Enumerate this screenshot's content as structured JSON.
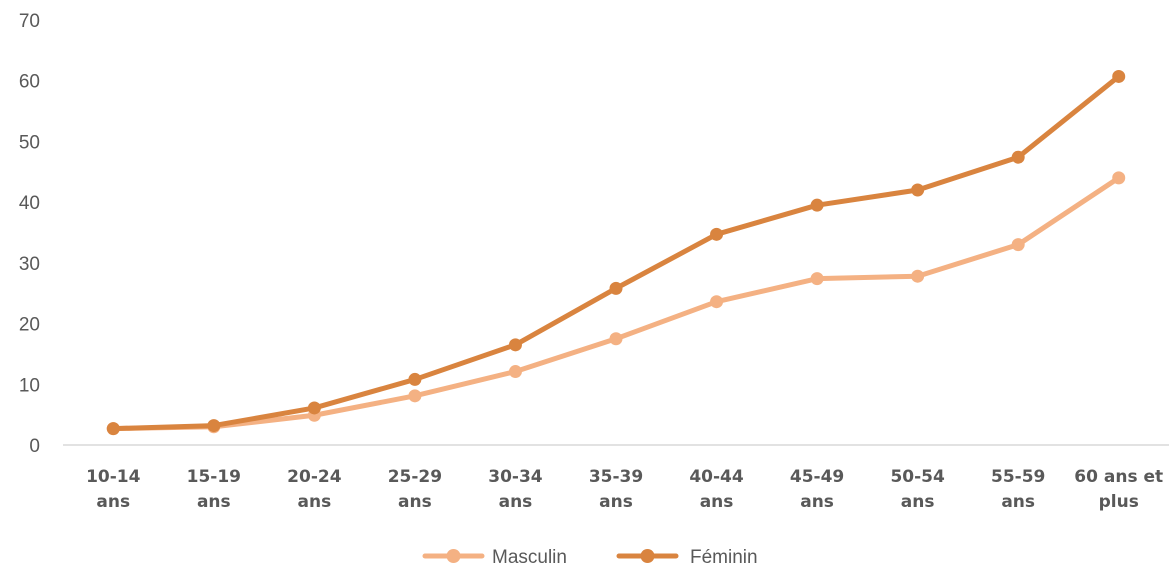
{
  "chart_data": {
    "type": "line",
    "title": "",
    "xlabel": "",
    "ylabel": "",
    "ylim": [
      0,
      70
    ],
    "yticks": [
      "0",
      "10",
      "20",
      "30",
      "40",
      "50",
      "60",
      "70"
    ],
    "grid": false,
    "legend_position": "bottom",
    "categories": [
      [
        "10-14",
        "ans"
      ],
      [
        "15-19",
        "ans"
      ],
      [
        "20-24",
        "ans"
      ],
      [
        "25-29",
        "ans"
      ],
      [
        "30-34",
        "ans"
      ],
      [
        "35-39",
        "ans"
      ],
      [
        "40-44",
        "ans"
      ],
      [
        "45-49",
        "ans"
      ],
      [
        "50-54",
        "ans"
      ],
      [
        "55-59",
        "ans"
      ],
      [
        "60 ans et",
        "plus"
      ]
    ],
    "series": [
      {
        "name": "Masculin",
        "color": "#F4B183",
        "values": [
          2.7,
          3.0,
          4.9,
          8.1,
          12.1,
          17.5,
          23.6,
          27.4,
          27.8,
          33.0,
          44.0
        ]
      },
      {
        "name": "Féminin",
        "color": "#D9843F",
        "values": [
          2.7,
          3.2,
          6.1,
          10.8,
          16.5,
          25.8,
          34.7,
          39.5,
          42.0,
          47.4,
          60.7
        ]
      }
    ]
  }
}
